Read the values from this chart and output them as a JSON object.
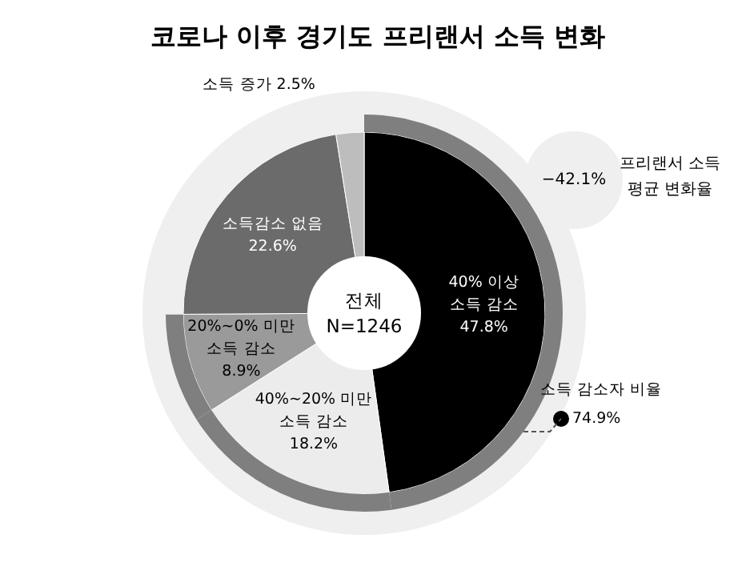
{
  "chart_data": {
    "type": "donut",
    "title": "코로나 이후 경기도 프리랜서 소득 변화",
    "categories": [
      "40% 이상\n소득 감소",
      "40%~20% 미만\n소득 감소",
      "20%~0% 미만\n소득 감소",
      "소득감소 없음",
      "소득 증가"
    ],
    "series": [
      {
        "values": [
          47.8,
          18.2,
          8.9,
          22.6,
          2.5
        ],
        "value_labels": [
          "47.8%",
          "18.2%",
          "8.9%",
          "22.6%",
          "2.5%"
        ],
        "colors": [
          "#000000",
          "#ececec",
          "#9a9a9a",
          "#6b6b6b",
          "#bdbdbd"
        ]
      },
      {
        "name": "소득 감소자 비율",
        "values": [
          47.8,
          18.2,
          8.9,
          22.6,
          2.5
        ],
        "colors": [
          "#7f7f7f",
          "#7f7f7f",
          "#7f7f7f",
          "#efefef",
          "#efefef"
        ]
      }
    ],
    "annotations": [
      "전체\nN=1246",
      "−42.1%",
      "프리랜서 소득\n평균 변화율",
      "74.9%"
    ]
  }
}
